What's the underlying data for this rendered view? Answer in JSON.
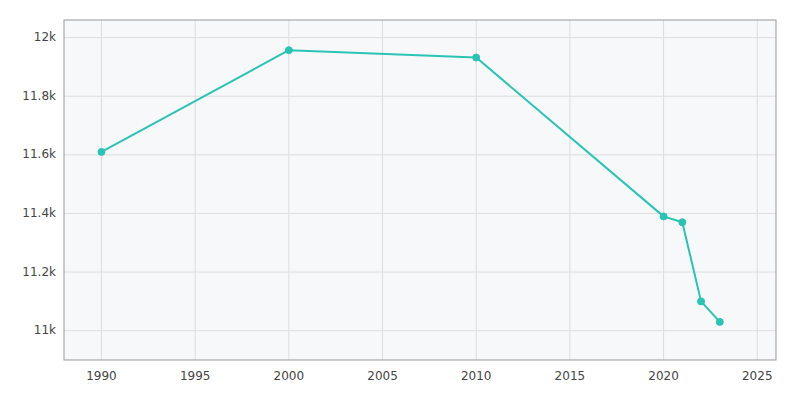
{
  "chart_data": {
    "type": "line",
    "x": [
      1990,
      2000,
      2010,
      2020,
      2021,
      2022,
      2023
    ],
    "values": [
      11610,
      11957,
      11932,
      11390,
      11370,
      11100,
      11030
    ],
    "color": "#2ac4b5",
    "marker": "circle",
    "xlim": [
      1988,
      2026
    ],
    "ylim": [
      10900,
      12060
    ],
    "xticks": [
      1990,
      1995,
      2000,
      2005,
      2010,
      2015,
      2020,
      2025
    ],
    "yticks": [
      {
        "value": 11000,
        "label": "11k"
      },
      {
        "value": 11200,
        "label": "11.2k"
      },
      {
        "value": 11400,
        "label": "11.4k"
      },
      {
        "value": 11600,
        "label": "11.6k"
      },
      {
        "value": 11800,
        "label": "11.8k"
      },
      {
        "value": 12000,
        "label": "12k"
      }
    ],
    "grid": true
  }
}
